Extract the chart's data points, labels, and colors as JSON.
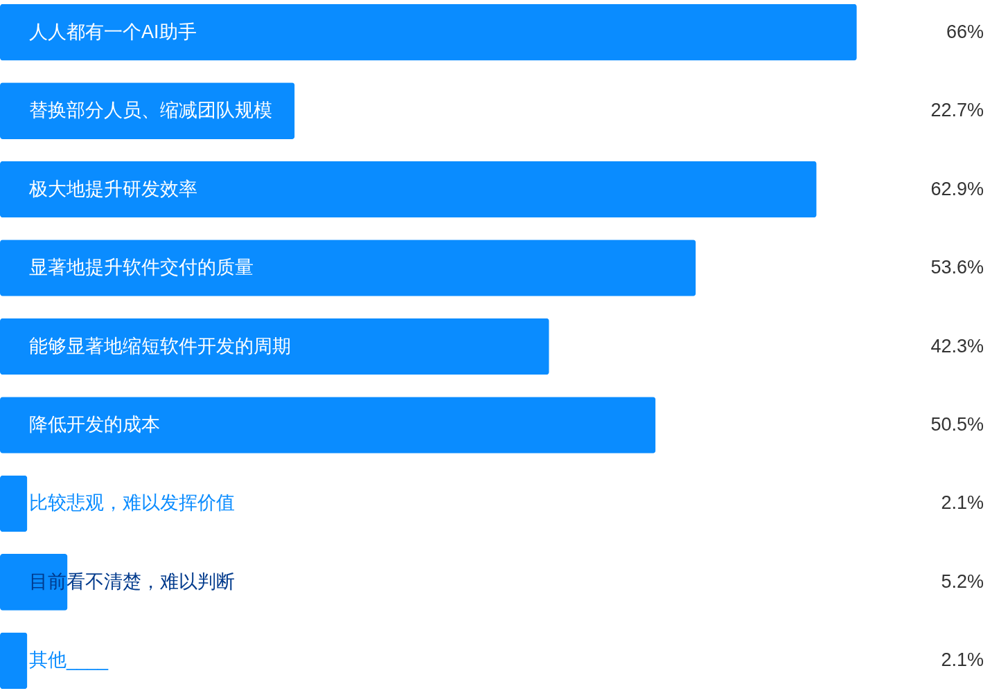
{
  "chart_data": {
    "type": "bar",
    "orientation": "horizontal",
    "data_labels": true,
    "tick_labels": false,
    "categories": [
      "人人都有一个AI助手",
      "替换部分人员、缩减团队规模",
      "极大地提升研发效率",
      "显著地提升软件交付的质量",
      "能够显著地缩短软件开发的周期",
      "降低开发的成本",
      "比较悲观，难以发挥价值",
      "目前看不清楚，难以判断",
      "其他____"
    ],
    "values": [
      66,
      22.7,
      62.9,
      53.6,
      42.3,
      50.5,
      2.1,
      5.2,
      2.1
    ],
    "value_labels": [
      "66%",
      "22.7%",
      "62.9%",
      "53.6%",
      "42.3%",
      "50.5%",
      "2.1%",
      "5.2%",
      "2.1%"
    ],
    "color": "#0a8cff"
  }
}
